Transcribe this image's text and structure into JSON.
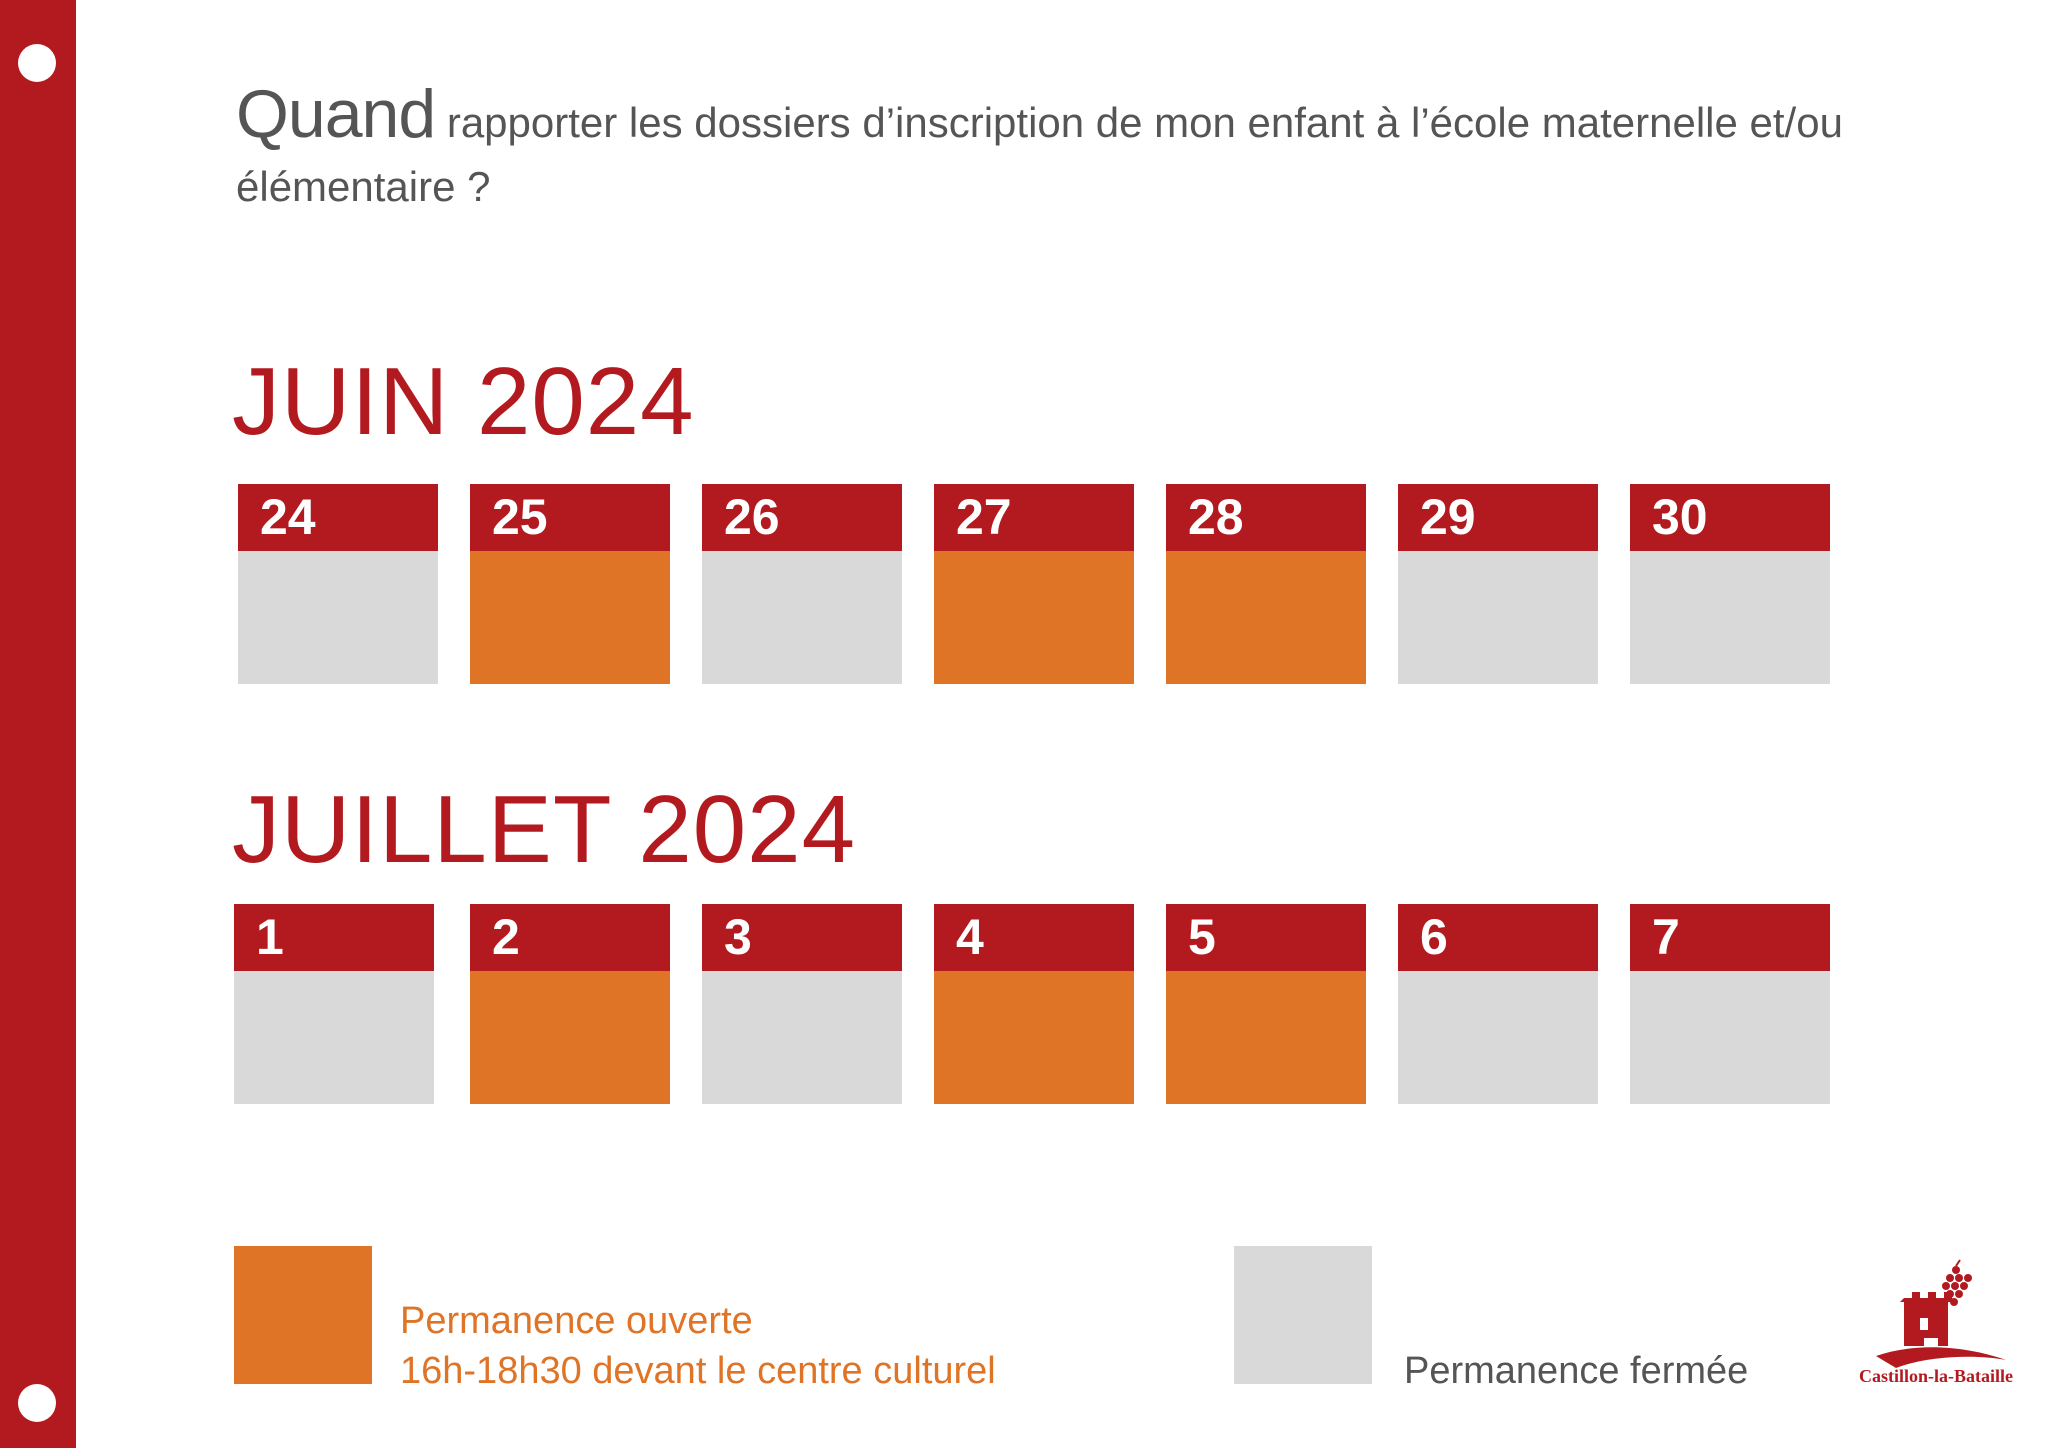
{
  "heading": {
    "big": "Quand",
    "rest": " rapporter les dossiers d’inscription de mon enfant à l’école maternelle et/ou",
    "line2": "élémentaire ?"
  },
  "months": [
    {
      "label": "JUIN 2024",
      "days": [
        {
          "day": "24",
          "status": "closed"
        },
        {
          "day": "25",
          "status": "open"
        },
        {
          "day": "26",
          "status": "closed"
        },
        {
          "day": "27",
          "status": "open"
        },
        {
          "day": "28",
          "status": "open"
        },
        {
          "day": "29",
          "status": "closed"
        },
        {
          "day": "30",
          "status": "closed"
        }
      ]
    },
    {
      "label": "JUILLET 2024",
      "days": [
        {
          "day": "1",
          "status": "closed"
        },
        {
          "day": "2",
          "status": "open"
        },
        {
          "day": "3",
          "status": "closed"
        },
        {
          "day": "4",
          "status": "open"
        },
        {
          "day": "5",
          "status": "open"
        },
        {
          "day": "6",
          "status": "closed"
        },
        {
          "day": "7",
          "status": "closed"
        }
      ]
    }
  ],
  "legend": {
    "open_line1": "Permanence ouverte",
    "open_line2": "16h-18h30 devant le centre culturel",
    "closed": "Permanence fermée"
  },
  "logo": {
    "text": "Castillon-la-Bataille",
    "icon": "castle-logo-icon"
  },
  "colors": {
    "red": "#b21a1f",
    "orange": "#e07426",
    "grey": "#d9d9d9",
    "text": "#555555"
  }
}
